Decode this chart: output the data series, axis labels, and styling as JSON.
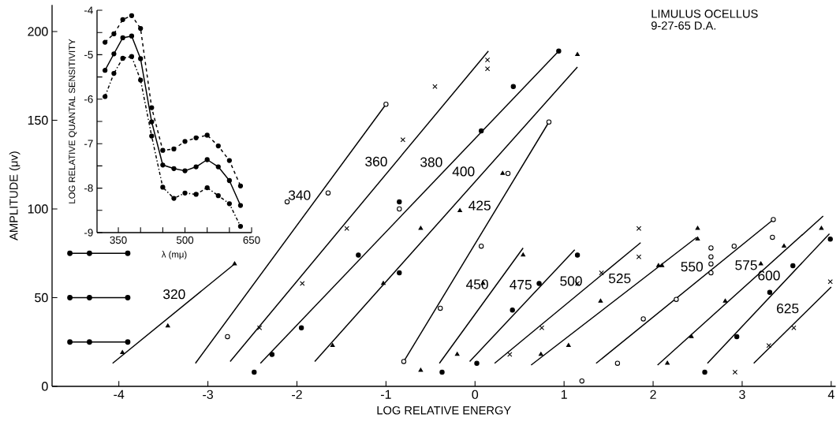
{
  "chart_data": [
    {
      "type": "scatter",
      "xlabel": "LOG RELATIVE ENERGY",
      "ylabel": "AMPLITUDE (μv)",
      "annotations": [
        "LIMULUS OCELLUS",
        "9-27-65 D.A."
      ],
      "xlim": [
        -4.75,
        4.05
      ],
      "ylim": [
        0,
        215
      ],
      "xticks": [
        -4,
        -3,
        -2,
        -1,
        0,
        1,
        2,
        3,
        4
      ],
      "yticks": [
        0,
        50,
        100,
        150,
        200
      ],
      "grid": false,
      "series": [
        {
          "type": "scatter",
          "marker": "circle",
          "color": "#ffffff",
          "x": [
            -2.78,
            -2.11,
            -1.65,
            -1.0,
            -0.85,
            -0.8,
            -0.39,
            0.07,
            0.37,
            0.83,
            1.2,
            1.6,
            1.89,
            2.26,
            2.65,
            2.65,
            2.65,
            2.65,
            2.91,
            3.34,
            3.35
          ],
          "values": [
            28,
            104,
            109,
            159,
            100,
            14,
            44,
            79,
            120,
            149,
            3,
            13,
            38,
            49,
            64,
            69,
            73,
            78,
            79,
            84,
            94
          ]
        },
        {
          "type": "scatter",
          "marker": "circle",
          "color": "#000000",
          "x": [
            -2.48,
            -2.28,
            -1.95,
            -1.31,
            -0.85,
            -0.85,
            -0.37,
            0.02,
            0.07,
            0.42,
            0.43,
            0.72,
            0.94,
            1.15,
            2.58,
            2.94,
            3.31,
            3.57,
            3.99
          ],
          "values": [
            8,
            18,
            33,
            74,
            104,
            64,
            8,
            13,
            144,
            43,
            169,
            58,
            189,
            74,
            8,
            28,
            53,
            68,
            83
          ]
        },
        {
          "type": "scatter",
          "marker": "cross",
          "color": "#000000",
          "x": [
            -2.42,
            -1.94,
            -1.44,
            -0.81,
            -0.45,
            0.14,
            0.14,
            0.39,
            0.75,
            1.15,
            1.42,
            1.84,
            1.84,
            2.92,
            3.3,
            3.58,
            3.99
          ],
          "values": [
            33,
            58,
            89,
            139,
            169,
            184,
            179,
            18,
            33,
            58,
            64,
            73,
            89,
            8,
            23,
            33,
            59
          ]
        },
        {
          "type": "scatter",
          "marker": "triangle",
          "color": "#000000",
          "x": [
            -3.96,
            -3.45,
            -2.7,
            -1.6,
            -1.03,
            -0.61,
            -0.61,
            -0.2,
            -0.17,
            0.09,
            0.31,
            0.54,
            0.74,
            1.05,
            1.15,
            1.41,
            2.06,
            2.1,
            2.16,
            2.43,
            2.5,
            2.5,
            2.81,
            3.21,
            3.47,
            3.89
          ],
          "values": [
            19,
            34,
            69,
            23,
            58,
            89,
            9,
            18,
            99,
            58,
            120,
            74,
            18,
            23,
            187,
            48,
            68,
            68,
            13,
            28,
            83,
            89,
            48,
            69,
            79,
            89
          ]
        },
        {
          "type": "line",
          "name": "320",
          "color": "#000000",
          "x": [
            -4.07,
            -2.7
          ],
          "values": [
            13,
            69
          ]
        },
        {
          "type": "line",
          "name": "340",
          "color": "#000000",
          "x": [
            -3.14,
            -1.0
          ],
          "values": [
            13,
            159
          ]
        },
        {
          "type": "line",
          "name": "360",
          "color": "#000000",
          "x": [
            -2.75,
            0.15
          ],
          "values": [
            14,
            189
          ]
        },
        {
          "type": "line",
          "name": "380",
          "color": "#000000",
          "x": [
            -2.41,
            0.94
          ],
          "values": [
            13,
            189
          ]
        },
        {
          "type": "line",
          "name": "400",
          "color": "#000000",
          "x": [
            -1.8,
            1.15
          ],
          "values": [
            14,
            180
          ]
        },
        {
          "type": "line",
          "name": "425",
          "color": "#000000",
          "x": [
            -0.8,
            0.83
          ],
          "values": [
            14,
            149
          ]
        },
        {
          "type": "line",
          "name": "450",
          "color": "#000000",
          "x": [
            -0.4,
            0.54
          ],
          "values": [
            13,
            78
          ]
        },
        {
          "type": "line",
          "name": "475",
          "color": "#000000",
          "x": [
            -0.06,
            1.12
          ],
          "values": [
            14,
            77
          ]
        },
        {
          "type": "line",
          "name": "500",
          "color": "#000000",
          "x": [
            0.22,
            1.86
          ],
          "values": [
            13,
            81
          ]
        },
        {
          "type": "line",
          "name": "525",
          "color": "#000000",
          "x": [
            0.63,
            2.49
          ],
          "values": [
            12,
            84
          ]
        },
        {
          "type": "line",
          "name": "550",
          "color": "#000000",
          "x": [
            1.36,
            3.35
          ],
          "values": [
            13,
            94
          ]
        },
        {
          "type": "line",
          "name": "575",
          "color": "#000000",
          "x": [
            2.05,
            3.91
          ],
          "values": [
            12,
            96
          ]
        },
        {
          "type": "line",
          "name": "600",
          "color": "#000000",
          "x": [
            2.61,
            3.98
          ],
          "values": [
            13,
            86
          ]
        },
        {
          "type": "line",
          "name": "625",
          "color": "#000000",
          "x": [
            3.13,
            4.0
          ],
          "values": [
            13,
            56
          ]
        },
        {
          "type": "line",
          "marker": "circle",
          "color": "#000000",
          "x": [
            -4.55,
            -4.33,
            -3.9
          ],
          "values": [
            75,
            75,
            75
          ]
        },
        {
          "type": "line",
          "marker": "circle",
          "color": "#000000",
          "x": [
            -4.55,
            -4.33,
            -3.9
          ],
          "values": [
            50,
            50,
            50
          ]
        },
        {
          "type": "line",
          "marker": "circle",
          "color": "#000000",
          "x": [
            -4.55,
            -4.33,
            -3.9
          ],
          "values": [
            25,
            25,
            25
          ]
        }
      ]
    },
    {
      "type": "line",
      "xlabel": "λ (mμ)",
      "ylabel": "LOG RELATIVE QUANTAL SENSITIVITY",
      "grid": false,
      "xlim": [
        302,
        650
      ],
      "ylim": [
        -9,
        -4
      ],
      "xticks": [
        350,
        {
          "value": 400,
          "label": null
        },
        {
          "value": 450,
          "label": null
        },
        500,
        {
          "value": 550,
          "label": null
        },
        {
          "value": 600,
          "label": null
        },
        650
      ],
      "yticks": [
        -9,
        {
          "value": -8.5,
          "label": null
        },
        -8,
        {
          "value": -7.5,
          "label": null
        },
        -7,
        {
          "value": -6.5,
          "label": null
        },
        -6,
        {
          "value": -5.5,
          "label": null
        },
        -5,
        {
          "value": -4.5,
          "label": null
        },
        -4
      ],
      "x": [
        320,
        340,
        360,
        380,
        400,
        425,
        450,
        475,
        500,
        525,
        550,
        575,
        600,
        625
      ],
      "series": [
        {
          "color": "#000000",
          "marker": "circle",
          "line_style": "dashed",
          "values": [
            -4.72,
            -4.53,
            -4.21,
            -4.12,
            -4.41,
            -6.19,
            -7.15,
            -7.12,
            -6.95,
            -6.87,
            -6.81,
            -7.05,
            -7.38,
            -7.95
          ]
        },
        {
          "color": "#000000",
          "marker": "circle",
          "line_style": "solid",
          "values": [
            -5.35,
            -4.98,
            -4.62,
            -4.58,
            -5.09,
            -6.51,
            -7.48,
            -7.56,
            -7.61,
            -7.52,
            -7.36,
            -7.52,
            -7.83,
            -8.39
          ]
        },
        {
          "color": "#000000",
          "marker": "circle",
          "line_style": "dashdot",
          "values": [
            -5.94,
            -5.42,
            -5.08,
            -5.04,
            -5.57,
            -6.83,
            -7.98,
            -8.23,
            -8.11,
            -8.14,
            -7.99,
            -8.17,
            -8.35,
            -8.86
          ]
        }
      ]
    }
  ]
}
